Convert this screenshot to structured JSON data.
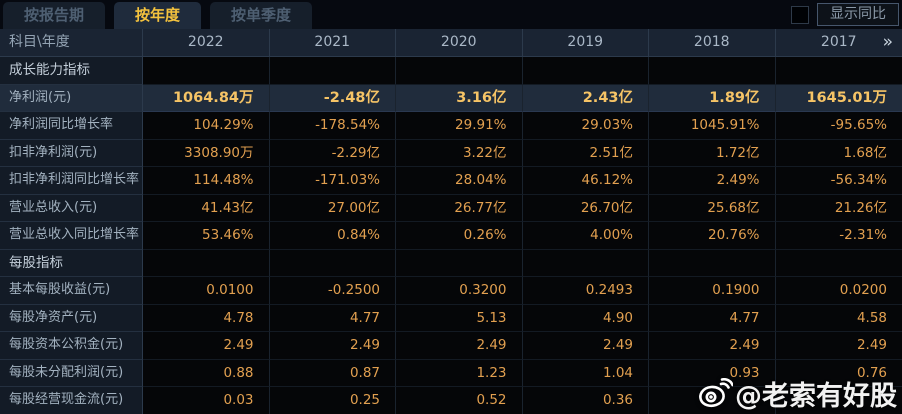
{
  "tabs": [
    {
      "label": "按报告期",
      "active": false
    },
    {
      "label": "按年度",
      "active": true
    },
    {
      "label": "按单季度",
      "active": false
    }
  ],
  "controls": {
    "compare_label": "显示同比",
    "checkbox_checked": false
  },
  "table": {
    "corner_label": "科目\\年度",
    "years": [
      "2022",
      "2021",
      "2020",
      "2019",
      "2018",
      "2017"
    ],
    "more_icon": "»",
    "rows": [
      {
        "type": "section",
        "label": "成长能力指标",
        "values": [
          "",
          "",
          "",
          "",
          "",
          ""
        ]
      },
      {
        "type": "highlight",
        "label": "净利润(元)",
        "values": [
          "1064.84万",
          "-2.48亿",
          "3.16亿",
          "2.43亿",
          "1.89亿",
          "1645.01万"
        ]
      },
      {
        "type": "data",
        "label": "净利润同比增长率",
        "values": [
          "104.29%",
          "-178.54%",
          "29.91%",
          "29.03%",
          "1045.91%",
          "-95.65%"
        ]
      },
      {
        "type": "data",
        "label": "扣非净利润(元)",
        "values": [
          "3308.90万",
          "-2.29亿",
          "3.22亿",
          "2.51亿",
          "1.72亿",
          "1.68亿"
        ]
      },
      {
        "type": "data",
        "label": "扣非净利润同比增长率",
        "values": [
          "114.48%",
          "-171.03%",
          "28.04%",
          "46.12%",
          "2.49%",
          "-56.34%"
        ]
      },
      {
        "type": "data",
        "label": "营业总收入(元)",
        "values": [
          "41.43亿",
          "27.00亿",
          "26.77亿",
          "26.70亿",
          "25.68亿",
          "21.26亿"
        ]
      },
      {
        "type": "data",
        "label": "营业总收入同比增长率",
        "values": [
          "53.46%",
          "0.84%",
          "0.26%",
          "4.00%",
          "20.76%",
          "-2.31%"
        ]
      },
      {
        "type": "section",
        "label": "每股指标",
        "values": [
          "",
          "",
          "",
          "",
          "",
          ""
        ]
      },
      {
        "type": "data",
        "label": "基本每股收益(元)",
        "values": [
          "0.0100",
          "-0.2500",
          "0.3200",
          "0.2493",
          "0.1900",
          "0.0200"
        ]
      },
      {
        "type": "data",
        "label": "每股净资产(元)",
        "values": [
          "4.78",
          "4.77",
          "5.13",
          "4.90",
          "4.77",
          "4.58"
        ]
      },
      {
        "type": "data",
        "label": "每股资本公积金(元)",
        "values": [
          "2.49",
          "2.49",
          "2.49",
          "2.49",
          "2.49",
          "2.49"
        ]
      },
      {
        "type": "data",
        "label": "每股未分配利润(元)",
        "values": [
          "0.88",
          "0.87",
          "1.23",
          "1.04",
          "0.93",
          "0.76"
        ]
      },
      {
        "type": "data",
        "label": "每股经营现金流(元)",
        "values": [
          "0.03",
          "0.25",
          "0.52",
          "0.36",
          "",
          ""
        ]
      }
    ]
  },
  "watermark": {
    "text": "@老索有好股",
    "icon": "weibo-icon"
  },
  "colors": {
    "accent_gold": "#f3c23e",
    "value_orange": "#e2a050",
    "highlight_value_gold": "#f6c466",
    "highlight_row_bg": "#202c3c",
    "panel_bg": "#1a2433",
    "label_col_bg": "#131b26",
    "page_bg": "#05070b",
    "watermark_color": "#ffffff"
  }
}
